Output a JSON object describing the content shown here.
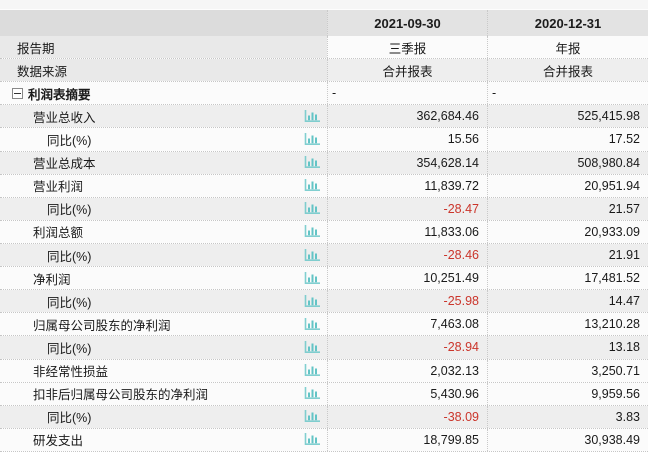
{
  "ui": {
    "columns": [
      "2021-09-30",
      "2020-12-31"
    ],
    "colors": {
      "negative_value": "#cb352b",
      "chart_icon": "#63c4c6"
    },
    "rows": [
      {
        "key": "report-period",
        "type": "meta",
        "label": "报告期",
        "values": [
          "三季报",
          "年报"
        ],
        "shade": "light",
        "chart_icon": false
      },
      {
        "key": "data-source",
        "type": "meta",
        "label": "数据来源",
        "values": [
          "合并报表",
          "合并报表"
        ],
        "shade": "gray",
        "chart_icon": false
      },
      {
        "key": "income-statement-summary",
        "type": "section",
        "label": "利润表摘要",
        "values": [
          "-",
          "-"
        ],
        "shade": "light",
        "chart_icon": false
      },
      {
        "key": "total-operating-revenue",
        "type": "item",
        "label": "营业总收入",
        "values": [
          "362,684.46",
          "525,415.98"
        ],
        "shade": "gray",
        "chart_icon": true
      },
      {
        "key": "total-operating-revenue-yoy",
        "type": "sub",
        "label": "同比(%)",
        "values": [
          "15.56",
          "17.52"
        ],
        "shade": "light",
        "chart_icon": true
      },
      {
        "key": "total-operating-cost",
        "type": "item",
        "label": "营业总成本",
        "values": [
          "354,628.14",
          "508,980.84"
        ],
        "shade": "gray",
        "chart_icon": true
      },
      {
        "key": "operating-profit",
        "type": "item",
        "label": "营业利润",
        "values": [
          "11,839.72",
          "20,951.94"
        ],
        "shade": "light",
        "chart_icon": true
      },
      {
        "key": "operating-profit-yoy",
        "type": "sub",
        "label": "同比(%)",
        "values": [
          "-28.47",
          "21.57"
        ],
        "shade": "gray",
        "chart_icon": true
      },
      {
        "key": "total-profit",
        "type": "item",
        "label": "利润总额",
        "values": [
          "11,833.06",
          "20,933.09"
        ],
        "shade": "light",
        "chart_icon": true
      },
      {
        "key": "total-profit-yoy",
        "type": "sub",
        "label": "同比(%)",
        "values": [
          "-28.46",
          "21.91"
        ],
        "shade": "gray",
        "chart_icon": true
      },
      {
        "key": "net-profit",
        "type": "item",
        "label": "净利润",
        "values": [
          "10,251.49",
          "17,481.52"
        ],
        "shade": "light",
        "chart_icon": true
      },
      {
        "key": "net-profit-yoy",
        "type": "sub",
        "label": "同比(%)",
        "values": [
          "-25.98",
          "14.47"
        ],
        "shade": "gray",
        "chart_icon": true
      },
      {
        "key": "net-profit-attributable-to-parent",
        "type": "item",
        "label": "归属母公司股东的净利润",
        "values": [
          "7,463.08",
          "13,210.28"
        ],
        "shade": "light",
        "chart_icon": true
      },
      {
        "key": "net-profit-attributable-yoy",
        "type": "sub",
        "label": "同比(%)",
        "values": [
          "-28.94",
          "13.18"
        ],
        "shade": "gray",
        "chart_icon": true
      },
      {
        "key": "non-recurring-gains-losses",
        "type": "item",
        "label": "非经常性损益",
        "values": [
          "2,032.13",
          "3,250.71"
        ],
        "shade": "light",
        "chart_icon": true
      },
      {
        "key": "deducted-net-profit-attributable",
        "type": "item",
        "label": "扣非后归属母公司股东的净利润",
        "values": [
          "5,430.96",
          "9,959.56"
        ],
        "shade": "light",
        "chart_icon": true
      },
      {
        "key": "deducted-net-profit-yoy",
        "type": "sub",
        "label": "同比(%)",
        "values": [
          "-38.09",
          "3.83"
        ],
        "shade": "gray",
        "chart_icon": true
      },
      {
        "key": "rd-expense",
        "type": "item",
        "label": "研发支出",
        "values": [
          "18,799.85",
          "30,938.49"
        ],
        "shade": "light",
        "chart_icon": true
      }
    ]
  }
}
